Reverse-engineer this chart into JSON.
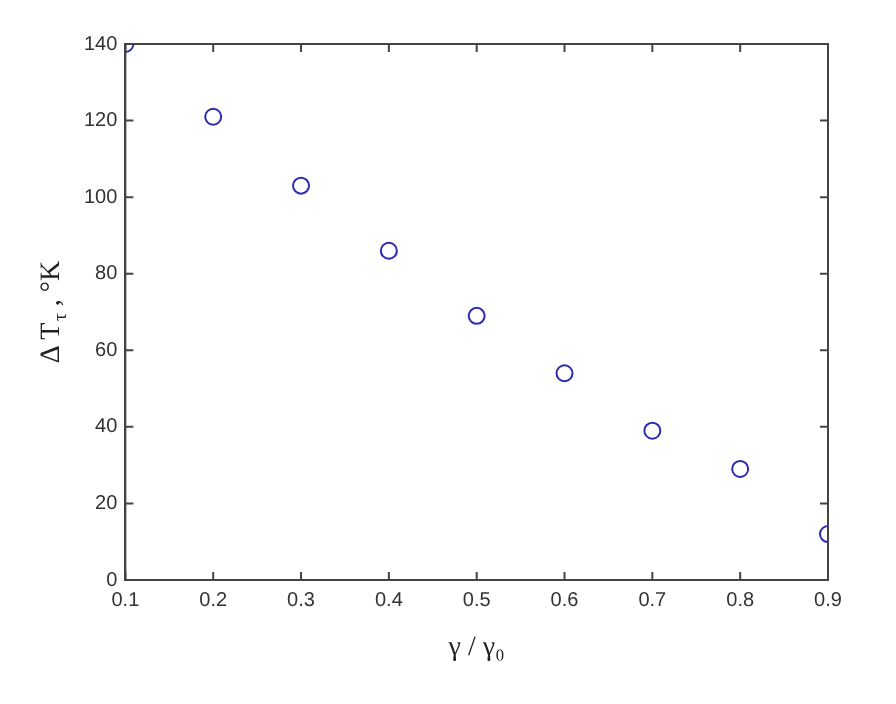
{
  "chart_data": {
    "type": "scatter",
    "xlabel": "γ / γ₀",
    "ylabel": "Δ T$_{τ}$ , °K",
    "x": [
      0.1,
      0.2,
      0.3,
      0.4,
      0.5,
      0.6,
      0.7,
      0.8,
      0.9
    ],
    "series": [
      {
        "color": "#2b2bb0",
        "values": [
          140,
          121,
          103,
          86,
          69,
          54,
          39,
          29,
          12
        ]
      }
    ],
    "xlim": [
      0.1,
      0.9
    ],
    "xticks": [
      0.1,
      0.2,
      0.3,
      0.4,
      0.5,
      0.6,
      0.7,
      0.8,
      0.9
    ],
    "ylim": [
      0,
      140
    ],
    "yticks": [
      0,
      20,
      40,
      60,
      80,
      100,
      120,
      140
    ],
    "grid": false,
    "legend": false,
    "marker": "circle"
  }
}
